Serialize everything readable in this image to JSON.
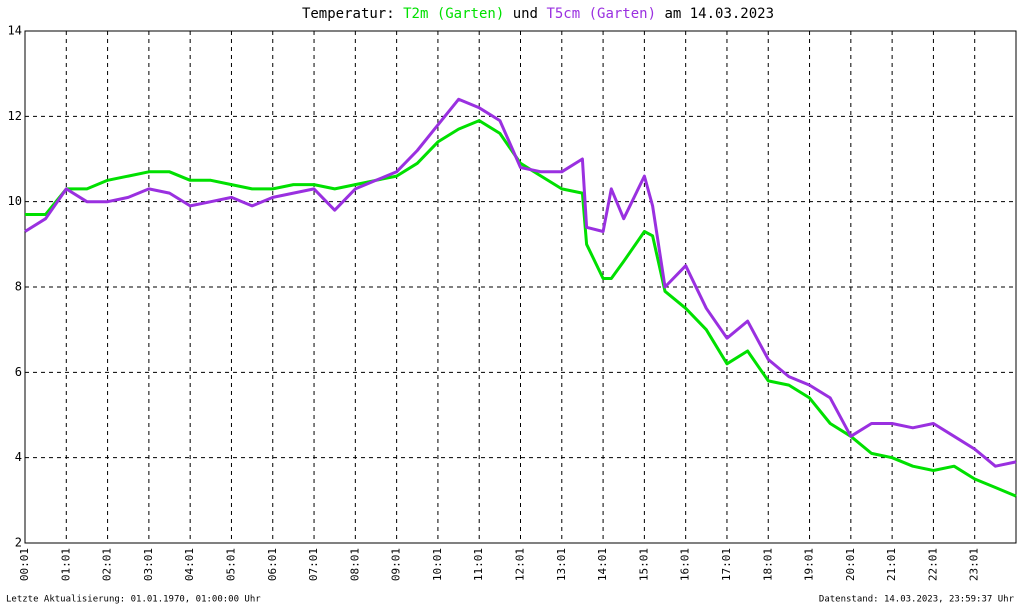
{
  "chart_data": {
    "type": "line",
    "title_prefix": "Temperatur:",
    "title_join": "und",
    "title_suffix": "am 14.03.2023",
    "x": [
      0,
      0.5,
      1,
      1.5,
      2,
      2.5,
      3,
      3.5,
      4,
      4.5,
      5,
      5.5,
      6,
      6.5,
      7,
      7.5,
      8,
      8.5,
      9,
      9.5,
      10,
      10.5,
      11,
      11.5,
      12,
      12.5,
      13,
      13.5,
      13.6,
      14,
      14.2,
      14.5,
      15,
      15.2,
      15.5,
      16,
      16.5,
      17,
      17.5,
      18,
      18.5,
      19,
      19.5,
      20,
      20.5,
      21,
      21.5,
      22,
      22.5,
      23,
      23.5,
      24
    ],
    "series": [
      {
        "name": "T2m (Garten)",
        "color": "#00e000",
        "values": [
          9.7,
          9.7,
          10.3,
          10.3,
          10.5,
          10.6,
          10.7,
          10.7,
          10.5,
          10.5,
          10.4,
          10.3,
          10.3,
          10.4,
          10.4,
          10.3,
          10.4,
          10.5,
          10.6,
          10.9,
          11.4,
          11.7,
          11.9,
          11.6,
          10.9,
          10.6,
          10.3,
          10.2,
          9.0,
          8.2,
          8.2,
          8.6,
          9.3,
          9.2,
          7.9,
          7.5,
          7.0,
          6.2,
          6.5,
          5.8,
          5.7,
          5.4,
          4.8,
          4.5,
          4.1,
          4.0,
          3.8,
          3.7,
          3.8,
          3.5,
          3.3,
          3.1
        ]
      },
      {
        "name": "T5cm (Garten)",
        "color": "#9a30e0",
        "values": [
          9.3,
          9.6,
          10.3,
          10.0,
          10.0,
          10.1,
          10.3,
          10.2,
          9.9,
          10.0,
          10.1,
          9.9,
          10.1,
          10.2,
          10.3,
          9.8,
          10.3,
          10.5,
          10.7,
          11.2,
          11.8,
          12.4,
          12.2,
          11.9,
          10.8,
          10.7,
          10.7,
          11.0,
          9.4,
          9.3,
          10.3,
          9.6,
          10.6,
          9.9,
          8.0,
          8.5,
          7.5,
          6.8,
          7.2,
          6.3,
          5.9,
          5.7,
          5.4,
          4.5,
          4.8,
          4.8,
          4.7,
          4.8,
          4.5,
          4.2,
          3.8,
          3.9
        ]
      }
    ],
    "xlim": [
      0,
      24
    ],
    "xticks": [
      {
        "value": 0,
        "label": "00:01"
      },
      {
        "value": 1,
        "label": "01:01"
      },
      {
        "value": 2,
        "label": "02:01"
      },
      {
        "value": 3,
        "label": "03:01"
      },
      {
        "value": 4,
        "label": "04:01"
      },
      {
        "value": 5,
        "label": "05:01"
      },
      {
        "value": 6,
        "label": "06:01"
      },
      {
        "value": 7,
        "label": "07:01"
      },
      {
        "value": 8,
        "label": "08:01"
      },
      {
        "value": 9,
        "label": "09:01"
      },
      {
        "value": 10,
        "label": "10:01"
      },
      {
        "value": 11,
        "label": "11:01"
      },
      {
        "value": 12,
        "label": "12:01"
      },
      {
        "value": 13,
        "label": "13:01"
      },
      {
        "value": 14,
        "label": "14:01"
      },
      {
        "value": 15,
        "label": "15:01"
      },
      {
        "value": 16,
        "label": "16:01"
      },
      {
        "value": 17,
        "label": "17:01"
      },
      {
        "value": 18,
        "label": "18:01"
      },
      {
        "value": 19,
        "label": "19:01"
      },
      {
        "value": 20,
        "label": "20:01"
      },
      {
        "value": 21,
        "label": "21:01"
      },
      {
        "value": 22,
        "label": "22:01"
      },
      {
        "value": 23,
        "label": "23:01"
      }
    ],
    "ylim": [
      2,
      14
    ],
    "yticks": [
      2,
      4,
      6,
      8,
      10,
      12,
      14
    ],
    "grid": true,
    "footer_left": "Letzte Aktualisierung: 01.01.1970, 01:00:00 Uhr",
    "footer_right": "Datenstand: 14.03.2023, 23:59:37 Uhr"
  }
}
